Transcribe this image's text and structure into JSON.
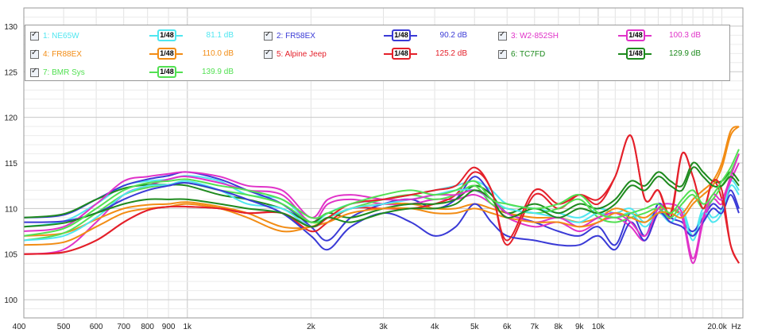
{
  "chart_data": {
    "type": "line",
    "x_unit": "Hz",
    "x_scale": "log",
    "xlim": [
      400,
      22500
    ],
    "ylim": [
      98,
      132
    ],
    "grid": true,
    "y_ticks": [
      100,
      105,
      110,
      115,
      120,
      125,
      130
    ],
    "x_ticks": [
      {
        "value": 400,
        "label": "400"
      },
      {
        "value": 500,
        "label": "500"
      },
      {
        "value": 600,
        "label": "600"
      },
      {
        "value": 700,
        "label": "700"
      },
      {
        "value": 800,
        "label": "800"
      },
      {
        "value": 900,
        "label": "900"
      },
      {
        "value": 1000,
        "label": "1k"
      },
      {
        "value": 2000,
        "label": "2k"
      },
      {
        "value": 3000,
        "label": "3k"
      },
      {
        "value": 4000,
        "label": "4k"
      },
      {
        "value": 5000,
        "label": "5k"
      },
      {
        "value": 6000,
        "label": "6k"
      },
      {
        "value": 7000,
        "label": "7k"
      },
      {
        "value": 8000,
        "label": "8k"
      },
      {
        "value": 9000,
        "label": "9k"
      },
      {
        "value": 10000,
        "label": "10k"
      },
      {
        "value": 20000,
        "label": "20.0k"
      },
      {
        "value": 22500,
        "label": "Hz"
      }
    ],
    "x": [
      400,
      500,
      600,
      700,
      800,
      900,
      1000,
      1200,
      1400,
      1700,
      2000,
      2200,
      2500,
      3000,
      3500,
      4000,
      4500,
      5000,
      5500,
      6000,
      7000,
      8000,
      9000,
      10000,
      11000,
      12000,
      13000,
      14000,
      15000,
      16000,
      17000,
      18000,
      19000,
      20000,
      21000,
      22000
    ],
    "series": [
      {
        "name": "1: NE65W",
        "color": "#4fe6f0",
        "smoothing": "1/48",
        "level": "81.1 dB",
        "top": [
          108,
          108.6,
          110.5,
          112.5,
          113,
          113.2,
          113.6,
          113,
          111.5,
          111,
          108.5,
          109.5,
          110.5,
          111,
          111.5,
          112,
          112.5,
          113,
          112,
          110.5,
          110,
          109.5,
          109,
          110,
          109.5,
          110,
          108.5,
          110,
          109,
          110,
          107,
          110,
          109,
          110,
          113,
          112
        ],
        "bottom": [
          106.5,
          107,
          109,
          111.5,
          112.5,
          112.6,
          113,
          112,
          110.5,
          110,
          108,
          109,
          110,
          110.5,
          111,
          111.5,
          112,
          112,
          111,
          110,
          109.5,
          109,
          108.5,
          109.5,
          109,
          109.5,
          108,
          109.5,
          108.5,
          109.5,
          106.5,
          109.5,
          108.5,
          109.5,
          112.5,
          111.5
        ]
      },
      {
        "name": "2: FR58EX",
        "color": "#3a3ad6",
        "smoothing": "1/48",
        "level": "90.2 dB",
        "top": [
          109,
          109.3,
          111,
          112.5,
          113.2,
          113.6,
          114,
          113.2,
          112,
          110.5,
          108,
          106.5,
          109,
          110.5,
          111,
          110,
          111,
          113.5,
          111.5,
          109.5,
          108.5,
          107.5,
          107,
          108,
          106,
          109.5,
          107,
          110.5,
          109,
          108.5,
          107.5,
          109,
          110.5,
          110,
          112,
          110
        ],
        "bottom": [
          108.5,
          108.6,
          109.5,
          111,
          112,
          112.5,
          112.8,
          112,
          111,
          109.5,
          107,
          105.5,
          108,
          109.5,
          108.5,
          107,
          108,
          110.5,
          108.5,
          107,
          106.5,
          106,
          106,
          107,
          105.5,
          108.5,
          106.5,
          109.5,
          108.5,
          108,
          107,
          108.5,
          110,
          109.5,
          111.5,
          109.5
        ]
      },
      {
        "name": "3: W2-852SH",
        "color": "#e032c8",
        "smoothing": "1/48",
        "level": "100.3 dB",
        "top": [
          105,
          105.5,
          108.5,
          111.5,
          112.5,
          113.2,
          113.5,
          112.8,
          112,
          111.5,
          108.5,
          110.5,
          111,
          110.5,
          110.5,
          111,
          111,
          111.5,
          110.5,
          109,
          108,
          108.5,
          107.5,
          108.5,
          109,
          108,
          106.5,
          109.5,
          110,
          109,
          104,
          108.5,
          111,
          110.5,
          113,
          115
        ],
        "bottom": [
          107.5,
          108,
          110.5,
          113,
          113.5,
          113.8,
          114,
          113.5,
          112.5,
          112,
          109,
          111,
          111.5,
          111,
          111,
          111.5,
          111.5,
          112,
          111,
          109.5,
          108.5,
          109,
          108,
          109,
          109.5,
          108.5,
          107,
          110,
          110.5,
          109.5,
          104.5,
          109,
          111.5,
          111,
          113.5,
          116
        ]
      },
      {
        "name": "4: FR88EX",
        "color": "#f28c14",
        "smoothing": "1/48",
        "level": "110.0 dB",
        "top": [
          107,
          107.3,
          108.8,
          110,
          110.4,
          110.5,
          110.7,
          110.2,
          109.5,
          108,
          108,
          109,
          110,
          110.5,
          110.5,
          110,
          110,
          110.5,
          110,
          109.5,
          109,
          109,
          108.5,
          109,
          110,
          109.5,
          109,
          110,
          110,
          109.5,
          111,
          112,
          113,
          115,
          118.5,
          119
        ],
        "bottom": [
          106,
          106.3,
          108,
          109.5,
          110,
          110.2,
          110.5,
          110,
          109,
          107.5,
          108,
          108.5,
          109.5,
          110,
          110,
          109.5,
          109.5,
          110,
          109.5,
          109,
          108.5,
          108.5,
          108,
          108.5,
          109.5,
          109,
          108.5,
          109.5,
          109.5,
          109,
          110.5,
          111.5,
          112.5,
          114.5,
          118,
          119
        ]
      },
      {
        "name": "5: Alpine Jeep",
        "color": "#e4202a",
        "smoothing": "1/48",
        "level": "125.2 dB",
        "top": [
          105,
          105.2,
          106.5,
          108.5,
          109.8,
          110.2,
          110.2,
          110,
          109.5,
          109.5,
          107.5,
          108.5,
          110,
          110,
          110,
          110.5,
          111.5,
          114,
          112,
          106,
          111.5,
          110,
          111.5,
          110.5,
          113.5,
          118,
          111,
          112,
          109,
          116,
          113.5,
          110,
          113,
          111,
          106,
          104
        ],
        "bottom": [
          105,
          105.2,
          106.5,
          108.5,
          109.8,
          110.2,
          110.2,
          110,
          109.5,
          109.5,
          108,
          109,
          110.5,
          111,
          111.5,
          112,
          112.5,
          114.5,
          112,
          106.5,
          112,
          110.5,
          111.5,
          111,
          113.5,
          118,
          111,
          112,
          109.5,
          116,
          113.5,
          110,
          113,
          112,
          106,
          104
        ]
      },
      {
        "name": "6: TC7FD",
        "color": "#1e8a1e",
        "smoothing": "1/48",
        "level": "129.9 dB",
        "top": [
          109,
          109.4,
          111,
          112.2,
          112.6,
          112.6,
          112.5,
          111.5,
          111,
          110,
          108.5,
          109.5,
          109,
          110,
          110.5,
          110.5,
          111,
          112.5,
          111.5,
          109.5,
          110.5,
          109.5,
          110.5,
          110,
          111,
          113,
          112.5,
          114,
          113,
          112.5,
          115,
          114,
          113,
          113,
          114,
          113
        ],
        "bottom": [
          108,
          108.4,
          109.5,
          110.5,
          111,
          111,
          111,
          110.5,
          110,
          109.5,
          108,
          109,
          108.5,
          109.5,
          110,
          110,
          110.5,
          112,
          111,
          109,
          110,
          109,
          110,
          109.5,
          110.5,
          112.5,
          112,
          113.5,
          112.5,
          112,
          114.5,
          113.5,
          112.5,
          112.5,
          113.5,
          112.5
        ]
      },
      {
        "name": "7: BMR Sys",
        "color": "#52e052",
        "smoothing": "1/48",
        "level": "139.9 dB",
        "top": [
          106.5,
          107.3,
          109.5,
          111.5,
          112.3,
          112.6,
          112.8,
          112,
          111.5,
          110.5,
          108.5,
          109,
          110,
          111,
          111.5,
          111,
          111.5,
          112.5,
          110.5,
          110,
          109.5,
          110,
          111,
          109,
          108.5,
          109,
          109.5,
          110,
          109,
          110.5,
          111.5,
          110,
          111,
          112.5,
          114,
          116
        ],
        "bottom": [
          107,
          107.8,
          110,
          112,
          112.8,
          113,
          113.2,
          112.5,
          112,
          111,
          109,
          109.5,
          110.5,
          111.5,
          112,
          111.5,
          112,
          113,
          111,
          110.5,
          110,
          110.5,
          111.5,
          109.5,
          109,
          109.5,
          110,
          110.5,
          109.5,
          111,
          112,
          110.5,
          111.5,
          113,
          114.5,
          116.5
        ]
      }
    ]
  }
}
